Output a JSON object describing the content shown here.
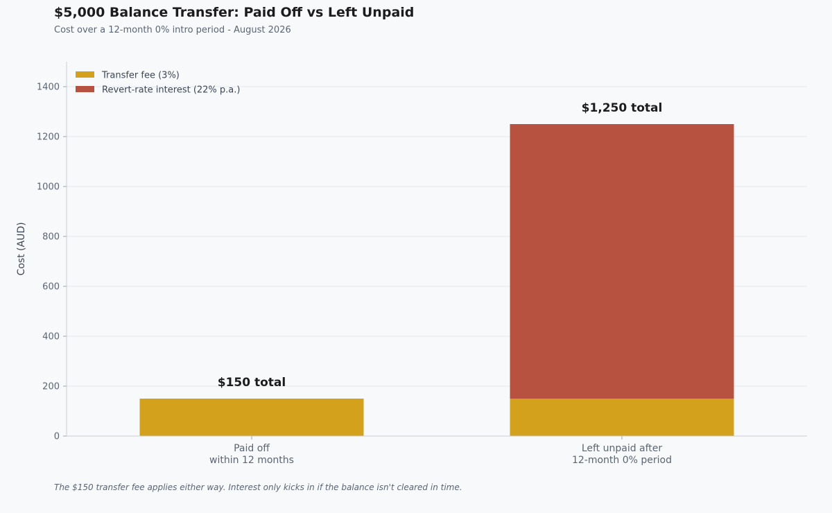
{
  "header": {
    "title": "$5,000 Balance Transfer: Paid Off vs Left Unpaid",
    "subtitle": "Cost over a 12-month 0% intro period - August 2026"
  },
  "footnote": "The $150 transfer fee applies either way. Interest only kicks in if the balance isn't cleared in time.",
  "chart_data": {
    "type": "bar",
    "stacked": true,
    "title": "$5,000 Balance Transfer: Paid Off vs Left Unpaid",
    "subtitle": "Cost over a 12-month 0% intro period - August 2026",
    "categories": [
      [
        "Paid off",
        "within 12 months"
      ],
      [
        "Left unpaid after",
        "12-month 0% period"
      ]
    ],
    "series": [
      {
        "name": "Transfer fee (3%)",
        "color": "#d4a11c",
        "values": [
          150,
          150
        ]
      },
      {
        "name": "Revert-rate interest (22% p.a.)",
        "color": "#b85240",
        "values": [
          0,
          1100
        ]
      }
    ],
    "totals": [
      "$150 total",
      "$1,250 total"
    ],
    "xlabel": "",
    "ylabel": "Cost (AUD)",
    "ylim": [
      0,
      1500
    ],
    "yticks": [
      0,
      200,
      400,
      600,
      800,
      1000,
      1200,
      1400
    ],
    "grid": true,
    "legend": "top-left"
  }
}
